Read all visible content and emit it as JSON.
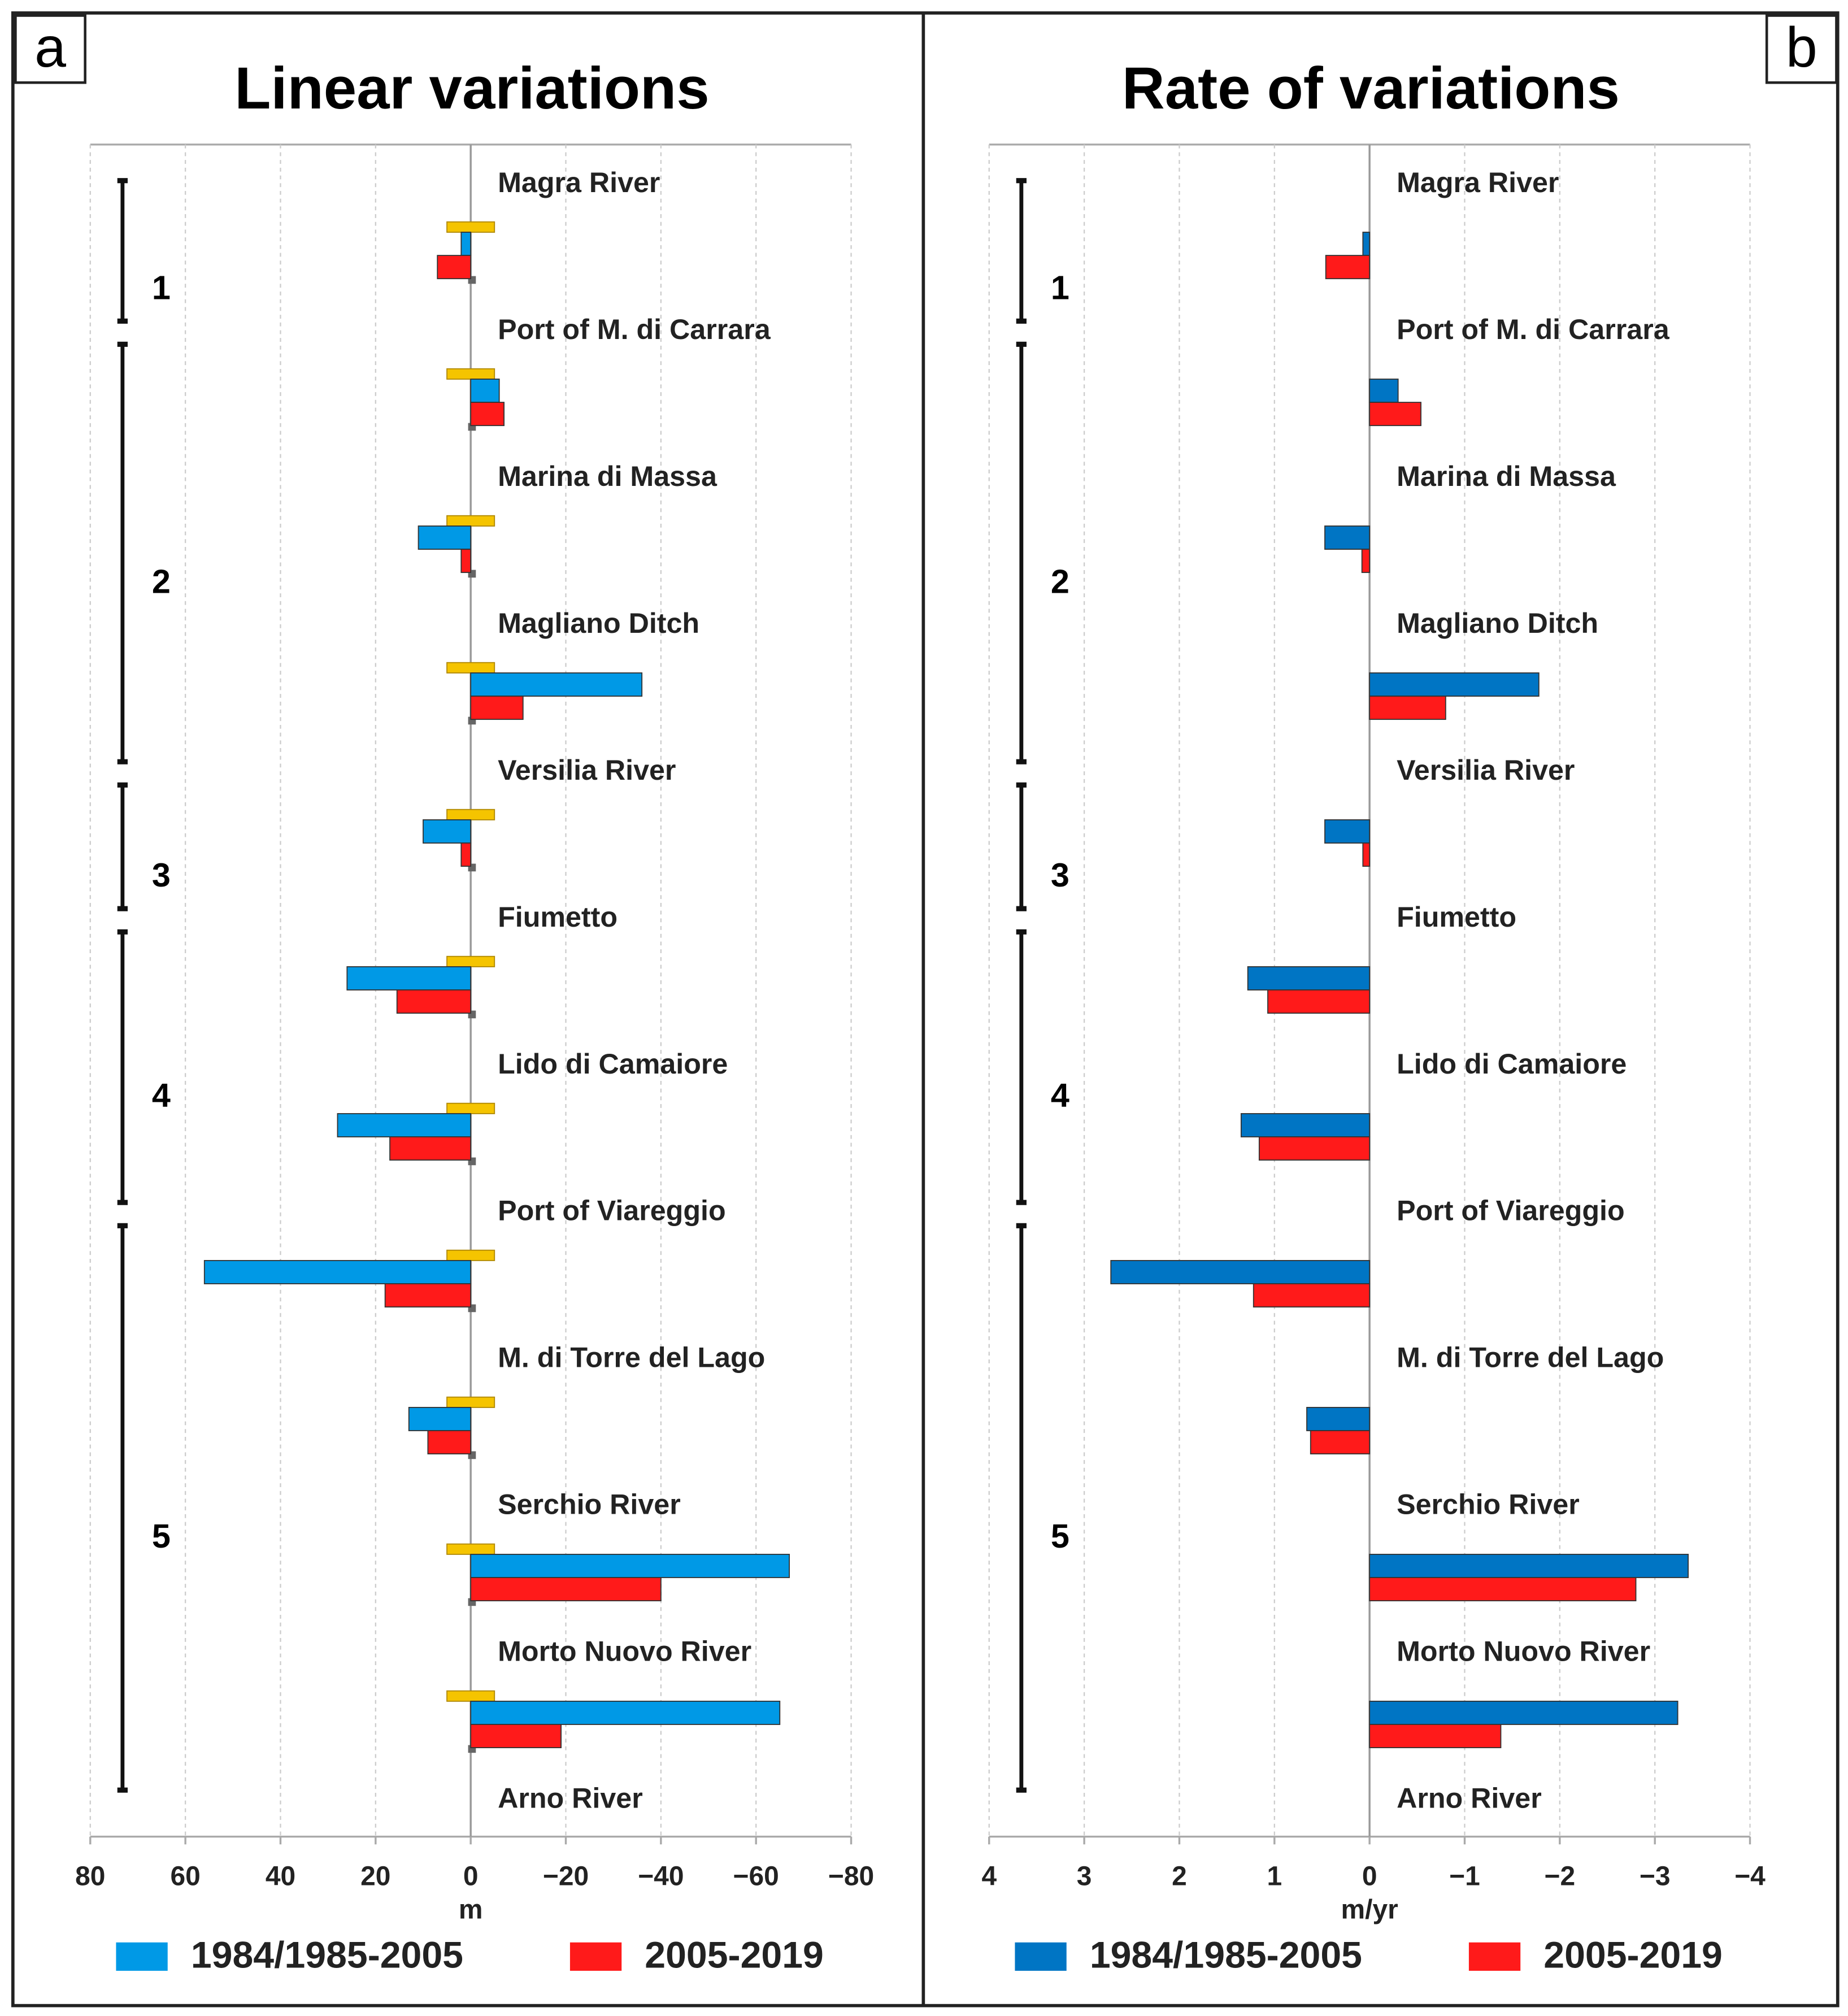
{
  "chart_data": [
    {
      "type": "hbar",
      "panel": "a",
      "title": "Linear variations",
      "xlabel": "m",
      "xlim": [
        80,
        -80
      ],
      "xticks": [
        80,
        60,
        40,
        20,
        0,
        {
          "value": -20,
          "label": "−20"
        },
        {
          "value": -40,
          "label": "−40"
        },
        {
          "value": -60,
          "label": "−60"
        },
        {
          "value": -80,
          "label": "−80"
        }
      ],
      "grid": true,
      "locations": [
        "Magra River",
        "Port of M. di Carrara",
        "Marina di Massa",
        "Magliano Ditch",
        "Versilia River",
        "Fiumetto",
        "Lido di Camaiore",
        "Port of Viareggio",
        "M. di Torre del Lago",
        "Serchio River",
        "Morto Nuovo River",
        "Arno River"
      ],
      "sectors": [
        {
          "label": "1",
          "from": 0,
          "to": 1
        },
        {
          "label": "2",
          "from": 1,
          "to": 4
        },
        {
          "label": "3",
          "from": 4,
          "to": 5
        },
        {
          "label": "4",
          "from": 5,
          "to": 7
        },
        {
          "label": "5",
          "from": 7,
          "to": 11
        }
      ],
      "uncertainty": 5,
      "uncertainty_color": "#f5c400",
      "series": [
        {
          "name": "1984/1985-2005",
          "color": "#0099e6",
          "values": [
            2,
            -6,
            11,
            -36,
            10,
            26,
            28,
            56,
            13,
            -67,
            -65
          ]
        },
        {
          "name": "2005-2019",
          "color": "#ff1a1a",
          "values": [
            7,
            -7,
            2,
            -11,
            2,
            15.5,
            17,
            18,
            9,
            -40,
            -19
          ]
        }
      ]
    },
    {
      "type": "hbar",
      "panel": "b",
      "title": "Rate of variations",
      "xlabel": "m/yr",
      "xlim": [
        4,
        -4
      ],
      "xticks": [
        4,
        3,
        2,
        1,
        0,
        {
          "value": -1,
          "label": "−1"
        },
        {
          "value": -2,
          "label": "−2"
        },
        {
          "value": -3,
          "label": "−3"
        },
        {
          "value": -4,
          "label": "−4"
        }
      ],
      "grid": true,
      "locations": [
        "Magra River",
        "Port of M. di Carrara",
        "Marina di Massa",
        "Magliano Ditch",
        "Versilia River",
        "Fiumetto",
        "Lido di Camaiore",
        "Port of Viareggio",
        "M. di Torre del Lago",
        "Serchio River",
        "Morto Nuovo River",
        "Arno River"
      ],
      "sectors": [
        {
          "label": "1",
          "from": 0,
          "to": 1
        },
        {
          "label": "2",
          "from": 1,
          "to": 4
        },
        {
          "label": "3",
          "from": 4,
          "to": 5
        },
        {
          "label": "4",
          "from": 5,
          "to": 7
        },
        {
          "label": "5",
          "from": 7,
          "to": 11
        }
      ],
      "series": [
        {
          "name": "1984/1985-2005",
          "color": "#0075c4",
          "values": [
            0.07,
            -0.3,
            0.47,
            -1.78,
            0.47,
            1.28,
            1.35,
            2.72,
            0.66,
            -3.35,
            -3.24
          ]
        },
        {
          "name": "2005-2019",
          "color": "#ff1a1a",
          "values": [
            0.46,
            -0.54,
            0.08,
            -0.8,
            0.07,
            1.07,
            1.16,
            1.22,
            0.62,
            -2.8,
            -1.38
          ]
        }
      ]
    }
  ]
}
